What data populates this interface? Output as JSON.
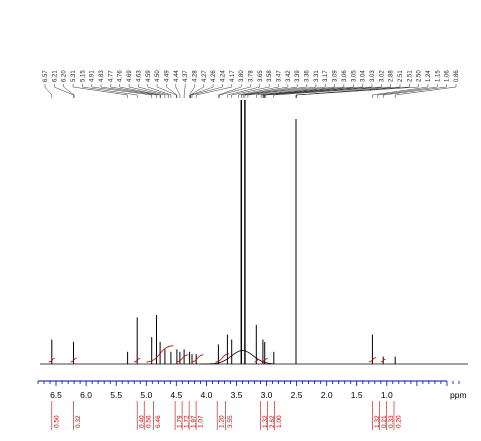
{
  "chart_data": {
    "type": "line",
    "title": "",
    "xlabel": "ppm",
    "ylabel": "",
    "xlim": [
      6.8,
      -0.3
    ],
    "x_reversed": true,
    "grid": false,
    "x_ticks": [
      6.5,
      6.0,
      5.5,
      5.0,
      4.5,
      4.0,
      3.5,
      3.0,
      2.5,
      2.0,
      1.5,
      1.0
    ],
    "x_tick_labels": [
      "6.5",
      "6.0",
      "5.5",
      "5.0",
      "4.5",
      "4.0",
      "3.5",
      "3.0",
      "2.5",
      "2.0",
      "1.5",
      "1.0"
    ],
    "peak_labels": [
      "6.57",
      "6.21",
      "6.20",
      "5.31",
      "5.15",
      "4.91",
      "4.83",
      "4.77",
      "4.76",
      "4.69",
      "4.63",
      "4.59",
      "4.50",
      "4.49",
      "4.44",
      "4.37",
      "4.28",
      "4.27",
      "4.26",
      "4.24",
      "4.17",
      "3.80",
      "3.78",
      "3.65",
      "3.58",
      "3.47",
      "3.42",
      "3.39",
      "3.36",
      "3.31",
      "3.17",
      "3.09",
      "3.06",
      "3.05",
      "3.04",
      "3.03",
      "3.02",
      "2.88",
      "2.51",
      "2.51",
      "2.50",
      "1.24",
      "1.15",
      "1.06",
      "0.86"
    ],
    "peaks": [
      {
        "ppm": 6.57,
        "height": 0.1
      },
      {
        "ppm": 6.21,
        "height": 0.09
      },
      {
        "ppm": 5.31,
        "height": 0.05
      },
      {
        "ppm": 5.15,
        "height": 0.19
      },
      {
        "ppm": 4.91,
        "height": 0.11
      },
      {
        "ppm": 4.83,
        "height": 0.2
      },
      {
        "ppm": 4.77,
        "height": 0.09
      },
      {
        "ppm": 4.69,
        "height": 0.06
      },
      {
        "ppm": 4.59,
        "height": 0.05
      },
      {
        "ppm": 4.49,
        "height": 0.06
      },
      {
        "ppm": 4.44,
        "height": 0.05
      },
      {
        "ppm": 4.37,
        "height": 0.06
      },
      {
        "ppm": 4.28,
        "height": 0.05
      },
      {
        "ppm": 4.24,
        "height": 0.04
      },
      {
        "ppm": 4.17,
        "height": 0.04
      },
      {
        "ppm": 3.8,
        "height": 0.08
      },
      {
        "ppm": 3.65,
        "height": 0.12
      },
      {
        "ppm": 3.58,
        "height": 0.1
      },
      {
        "ppm": 3.42,
        "height": 1.6
      },
      {
        "ppm": 3.36,
        "height": 1.6
      },
      {
        "ppm": 3.17,
        "height": 0.16
      },
      {
        "ppm": 3.06,
        "height": 0.1
      },
      {
        "ppm": 3.03,
        "height": 0.09
      },
      {
        "ppm": 2.88,
        "height": 0.05
      },
      {
        "ppm": 2.51,
        "height": 1.0
      },
      {
        "ppm": 1.24,
        "height": 0.12
      },
      {
        "ppm": 1.06,
        "height": 0.03
      },
      {
        "ppm": 0.86,
        "height": 0.03
      }
    ],
    "integrals": [
      {
        "ppm": 6.57,
        "value": "0.50"
      },
      {
        "ppm": 6.21,
        "value": "0.32"
      },
      {
        "ppm": 5.15,
        "value": "0.40"
      },
      {
        "ppm": 5.08,
        "value": "0.56"
      },
      {
        "ppm": 4.88,
        "value": "6.46"
      },
      {
        "ppm": 4.52,
        "value": "1.79"
      },
      {
        "ppm": 4.44,
        "value": "1.72"
      },
      {
        "ppm": 4.3,
        "value": "1.97"
      },
      {
        "ppm": 4.18,
        "value": "1.07"
      },
      {
        "ppm": 3.82,
        "value": "1.20"
      },
      {
        "ppm": 3.68,
        "value": "3.55"
      },
      {
        "ppm": 3.1,
        "value": "1.32"
      },
      {
        "ppm": 3.04,
        "value": "2.62"
      },
      {
        "ppm": 2.96,
        "value": "1.00"
      },
      {
        "ppm": 1.24,
        "value": "1.32"
      },
      {
        "ppm": 1.18,
        "value": "0.21"
      },
      {
        "ppm": 1.07,
        "value": "0.33"
      },
      {
        "ppm": 0.88,
        "value": "0.20"
      }
    ],
    "colors": {
      "spectrum": "#000000",
      "axis": "#0000cc",
      "integral": "#cc0000"
    }
  }
}
